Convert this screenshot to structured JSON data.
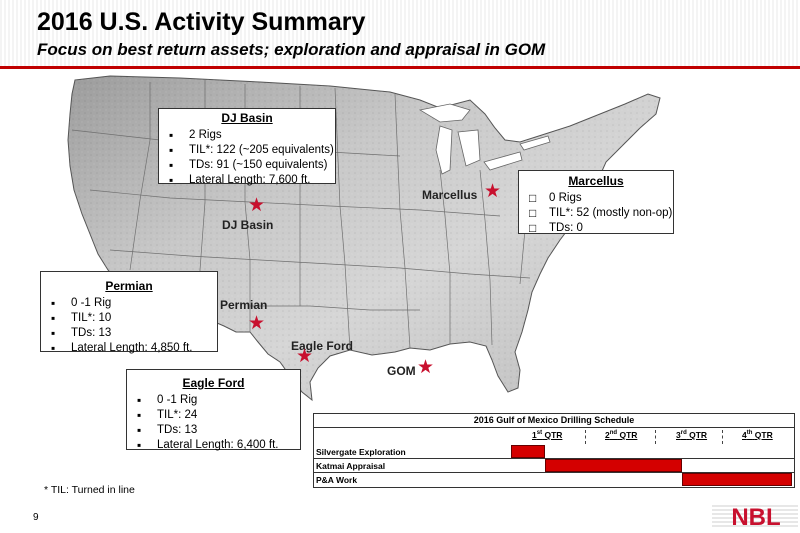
{
  "header": {
    "title": "2016 U.S. Activity Summary",
    "subtitle": "Focus on best return assets; exploration and appraisal in GOM"
  },
  "map": {
    "labels": {
      "dj_basin": "DJ Basin",
      "marcellus": "Marcellus",
      "permian": "Permian",
      "eagle_ford": "Eagle Ford",
      "gom": "GOM"
    }
  },
  "boxes": {
    "dj_basin": {
      "title": "DJ Basin",
      "items": [
        "2 Rigs",
        "TIL*: 122 (~205 equivalents)",
        "TDs: 91 (~150 equivalents)",
        "Lateral Length: 7,600 ft."
      ]
    },
    "marcellus": {
      "title": "Marcellus",
      "items": [
        "0 Rigs",
        "TIL*: 52 (mostly non-op)",
        "TDs: 0"
      ]
    },
    "permian": {
      "title": "Permian",
      "items": [
        "0 -1 Rig",
        "TIL*: 10",
        "TDs: 13",
        "Lateral Length: 4,850 ft."
      ]
    },
    "eagle_ford": {
      "title": "Eagle Ford",
      "items": [
        "0 -1 Rig",
        "TIL*: 24",
        "TDs: 13",
        "Lateral Length: 6,400 ft."
      ]
    }
  },
  "schedule": {
    "title": "2016 Gulf of Mexico Drilling Schedule",
    "quarters": [
      {
        "num": "1",
        "sup": "st",
        "label": "QTR"
      },
      {
        "num": "2",
        "sup": "nd",
        "label": "QTR"
      },
      {
        "num": "3",
        "sup": "rd",
        "label": "QTR"
      },
      {
        "num": "4",
        "sup": "th",
        "label": "QTR"
      }
    ],
    "rows": [
      {
        "label": "Silvergate Exploration",
        "start_qtr": 1.0,
        "end_qtr": 1.5
      },
      {
        "label": "Katmai Appraisal",
        "start_qtr": 1.5,
        "end_qtr": 3.5
      },
      {
        "label": "P&A Work",
        "start_qtr": 3.5,
        "end_qtr": 4.0
      }
    ],
    "bar_color": "#d40000"
  },
  "footnote": "* TIL: Turned in line",
  "page_number": "9",
  "logo": {
    "text": "NBL",
    "color": "#c8102e"
  }
}
